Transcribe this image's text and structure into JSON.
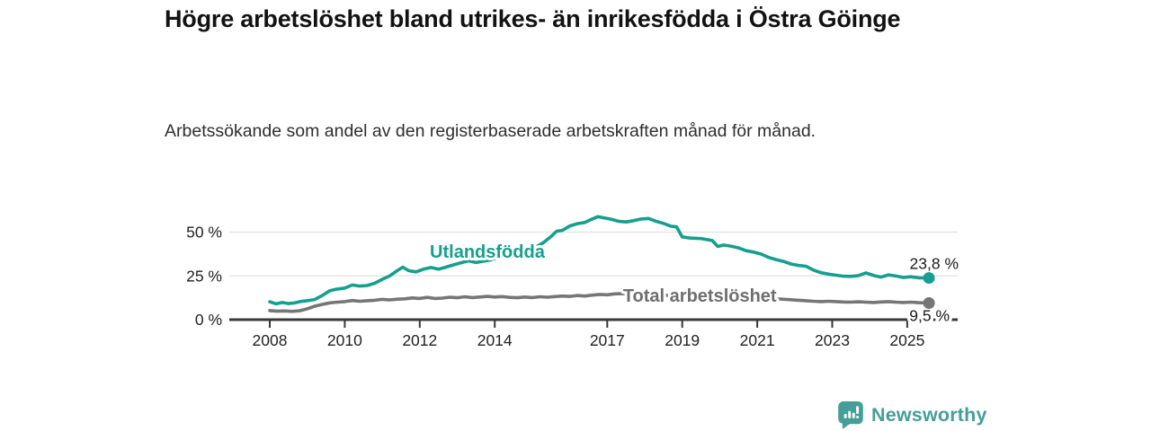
{
  "header": {
    "title": "Högre arbetslöshet bland utrikes- än inrikesfödda i Östra Göinge",
    "subtitle": "Arbetssökande som andel av den registerbaserade arbetskraften månad för månad."
  },
  "footer": {
    "brand": "Newsworthy",
    "brand_color": "#459e97"
  },
  "colors": {
    "accent_teal": "#169f8e",
    "line_gray": "#767676",
    "gray_label": "#6e6e6e",
    "axis_line": "#383838",
    "gridline": "#e5e5e5",
    "tick_text": "#222222",
    "value_label_text": "#1a1a1a"
  },
  "chart_data": {
    "type": "line",
    "title": "Högre arbetslöshet bland utrikes- än inrikesfödda i Östra Göinge",
    "subtitle": "Arbetssökande som andel av den registerbaserade arbetskraften månad för månad.",
    "xlabel": "",
    "ylabel": "",
    "grid": "horizontal",
    "x_range": [
      2007.7,
      2026.3
    ],
    "ylim": [
      0,
      64
    ],
    "x_ticks": [
      {
        "value": 2008,
        "label": "2008"
      },
      {
        "value": 2010,
        "label": "2010"
      },
      {
        "value": 2012,
        "label": "2012"
      },
      {
        "value": 2014,
        "label": "2014"
      },
      {
        "value": 2017,
        "label": "2017"
      },
      {
        "value": 2019,
        "label": "2019"
      },
      {
        "value": 2021,
        "label": "2021"
      },
      {
        "value": 2023,
        "label": "2023"
      },
      {
        "value": 2025,
        "label": "2025"
      }
    ],
    "y_ticks": [
      {
        "value": 0,
        "label": "0 %"
      },
      {
        "value": 25,
        "label": "25 %"
      },
      {
        "value": 50,
        "label": "50 %"
      }
    ],
    "legend_position": "inline-labels",
    "series": [
      {
        "name": "Utlandsfödda",
        "color": "#169f8e",
        "end_value": 23.8,
        "end_label": "23,8 %",
        "label_pos": [
          2012.27,
          45.2
        ],
        "points": [
          [
            2008.0,
            10.2
          ],
          [
            2008.17,
            9.0
          ],
          [
            2008.33,
            9.8
          ],
          [
            2008.5,
            9.2
          ],
          [
            2008.67,
            9.6
          ],
          [
            2008.83,
            10.4
          ],
          [
            2009.0,
            10.8
          ],
          [
            2009.2,
            11.5
          ],
          [
            2009.4,
            13.8
          ],
          [
            2009.6,
            16.5
          ],
          [
            2009.8,
            17.5
          ],
          [
            2010.0,
            18.0
          ],
          [
            2010.2,
            19.8
          ],
          [
            2010.4,
            19.2
          ],
          [
            2010.6,
            19.5
          ],
          [
            2010.8,
            20.8
          ],
          [
            2011.0,
            23.0
          ],
          [
            2011.2,
            25.0
          ],
          [
            2011.4,
            28.0
          ],
          [
            2011.55,
            30.0
          ],
          [
            2011.7,
            28.0
          ],
          [
            2011.9,
            27.3
          ],
          [
            2012.1,
            28.8
          ],
          [
            2012.3,
            29.8
          ],
          [
            2012.5,
            28.8
          ],
          [
            2012.7,
            30.0
          ],
          [
            2012.9,
            31.3
          ],
          [
            2013.1,
            32.5
          ],
          [
            2013.3,
            33.6
          ],
          [
            2013.5,
            32.6
          ],
          [
            2013.7,
            33.4
          ],
          [
            2013.9,
            34.2
          ],
          [
            2014.1,
            35.5
          ],
          [
            2014.3,
            37.0
          ],
          [
            2014.5,
            37.8
          ],
          [
            2014.7,
            37.2
          ],
          [
            2014.9,
            38.8
          ],
          [
            2015.1,
            41.5
          ],
          [
            2015.3,
            44.0
          ],
          [
            2015.5,
            47.5
          ],
          [
            2015.65,
            50.5
          ],
          [
            2015.8,
            51.0
          ],
          [
            2016.0,
            53.5
          ],
          [
            2016.2,
            54.8
          ],
          [
            2016.4,
            55.5
          ],
          [
            2016.6,
            57.5
          ],
          [
            2016.75,
            58.8
          ],
          [
            2016.9,
            58.2
          ],
          [
            2017.1,
            57.4
          ],
          [
            2017.3,
            56.2
          ],
          [
            2017.5,
            55.8
          ],
          [
            2017.7,
            56.5
          ],
          [
            2017.9,
            57.5
          ],
          [
            2018.1,
            57.8
          ],
          [
            2018.3,
            56.2
          ],
          [
            2018.5,
            55.0
          ],
          [
            2018.7,
            53.4
          ],
          [
            2018.85,
            53.0
          ],
          [
            2019.0,
            47.3
          ],
          [
            2019.2,
            46.6
          ],
          [
            2019.5,
            46.3
          ],
          [
            2019.8,
            45.2
          ],
          [
            2019.95,
            41.8
          ],
          [
            2020.1,
            42.6
          ],
          [
            2020.3,
            42.0
          ],
          [
            2020.5,
            41.0
          ],
          [
            2020.7,
            39.4
          ],
          [
            2020.9,
            38.6
          ],
          [
            2021.1,
            37.5
          ],
          [
            2021.3,
            35.6
          ],
          [
            2021.5,
            34.3
          ],
          [
            2021.7,
            33.3
          ],
          [
            2021.9,
            31.8
          ],
          [
            2022.1,
            31.0
          ],
          [
            2022.3,
            30.5
          ],
          [
            2022.5,
            28.3
          ],
          [
            2022.7,
            26.8
          ],
          [
            2022.9,
            26.0
          ],
          [
            2023.1,
            25.4
          ],
          [
            2023.3,
            24.8
          ],
          [
            2023.5,
            24.7
          ],
          [
            2023.7,
            25.2
          ],
          [
            2023.9,
            26.7
          ],
          [
            2024.1,
            25.3
          ],
          [
            2024.3,
            24.3
          ],
          [
            2024.5,
            25.6
          ],
          [
            2024.7,
            24.9
          ],
          [
            2024.9,
            24.1
          ],
          [
            2025.1,
            24.5
          ],
          [
            2025.3,
            23.9
          ],
          [
            2025.58,
            23.8
          ]
        ]
      },
      {
        "name": "Total arbetslöshet",
        "color": "#767676",
        "end_value": 9.5,
        "end_label": "9,5 %",
        "label_pos": [
          2017.42,
          20.0
        ],
        "points": [
          [
            2008.0,
            5.2
          ],
          [
            2008.2,
            4.8
          ],
          [
            2008.4,
            5.0
          ],
          [
            2008.6,
            4.7
          ],
          [
            2008.8,
            5.1
          ],
          [
            2009.0,
            6.2
          ],
          [
            2009.2,
            7.7
          ],
          [
            2009.4,
            8.7
          ],
          [
            2009.6,
            9.6
          ],
          [
            2009.8,
            10.0
          ],
          [
            2010.0,
            10.3
          ],
          [
            2010.2,
            10.9
          ],
          [
            2010.4,
            10.5
          ],
          [
            2010.6,
            10.8
          ],
          [
            2010.8,
            11.1
          ],
          [
            2011.0,
            11.6
          ],
          [
            2011.2,
            11.3
          ],
          [
            2011.4,
            11.7
          ],
          [
            2011.6,
            11.9
          ],
          [
            2011.8,
            12.4
          ],
          [
            2012.0,
            12.1
          ],
          [
            2012.2,
            12.7
          ],
          [
            2012.4,
            12.1
          ],
          [
            2012.6,
            12.3
          ],
          [
            2012.8,
            12.8
          ],
          [
            2013.0,
            12.5
          ],
          [
            2013.2,
            13.1
          ],
          [
            2013.4,
            12.6
          ],
          [
            2013.6,
            12.9
          ],
          [
            2013.8,
            13.3
          ],
          [
            2014.0,
            12.9
          ],
          [
            2014.2,
            13.2
          ],
          [
            2014.4,
            12.7
          ],
          [
            2014.6,
            12.5
          ],
          [
            2014.8,
            12.9
          ],
          [
            2015.0,
            12.6
          ],
          [
            2015.2,
            13.1
          ],
          [
            2015.4,
            12.8
          ],
          [
            2015.6,
            13.2
          ],
          [
            2015.8,
            13.5
          ],
          [
            2016.0,
            13.3
          ],
          [
            2016.2,
            13.8
          ],
          [
            2016.4,
            13.5
          ],
          [
            2016.6,
            14.0
          ],
          [
            2016.8,
            14.4
          ],
          [
            2017.0,
            14.2
          ],
          [
            2017.2,
            14.7
          ],
          [
            2017.4,
            14.9
          ],
          [
            2017.6,
            14.6
          ],
          [
            2017.8,
            14.4
          ],
          [
            2018.0,
            14.5
          ],
          [
            2018.3,
            14.1
          ],
          [
            2018.6,
            13.9
          ],
          [
            2018.9,
            13.7
          ],
          [
            2019.2,
            13.5
          ],
          [
            2019.5,
            13.3
          ],
          [
            2019.8,
            13.6
          ],
          [
            2020.1,
            13.8
          ],
          [
            2020.4,
            13.5
          ],
          [
            2020.7,
            13.1
          ],
          [
            2021.0,
            12.7
          ],
          [
            2021.3,
            12.2
          ],
          [
            2021.6,
            11.8
          ],
          [
            2021.9,
            11.4
          ],
          [
            2022.1,
            11.1
          ],
          [
            2022.3,
            10.8
          ],
          [
            2022.5,
            10.5
          ],
          [
            2022.7,
            10.3
          ],
          [
            2022.9,
            10.5
          ],
          [
            2023.1,
            10.3
          ],
          [
            2023.3,
            10.1
          ],
          [
            2023.5,
            10.0
          ],
          [
            2023.7,
            10.2
          ],
          [
            2023.9,
            10.0
          ],
          [
            2024.1,
            9.8
          ],
          [
            2024.3,
            10.1
          ],
          [
            2024.5,
            10.3
          ],
          [
            2024.7,
            10.0
          ],
          [
            2024.9,
            9.8
          ],
          [
            2025.1,
            10.0
          ],
          [
            2025.3,
            9.7
          ],
          [
            2025.58,
            9.5
          ]
        ]
      }
    ]
  }
}
